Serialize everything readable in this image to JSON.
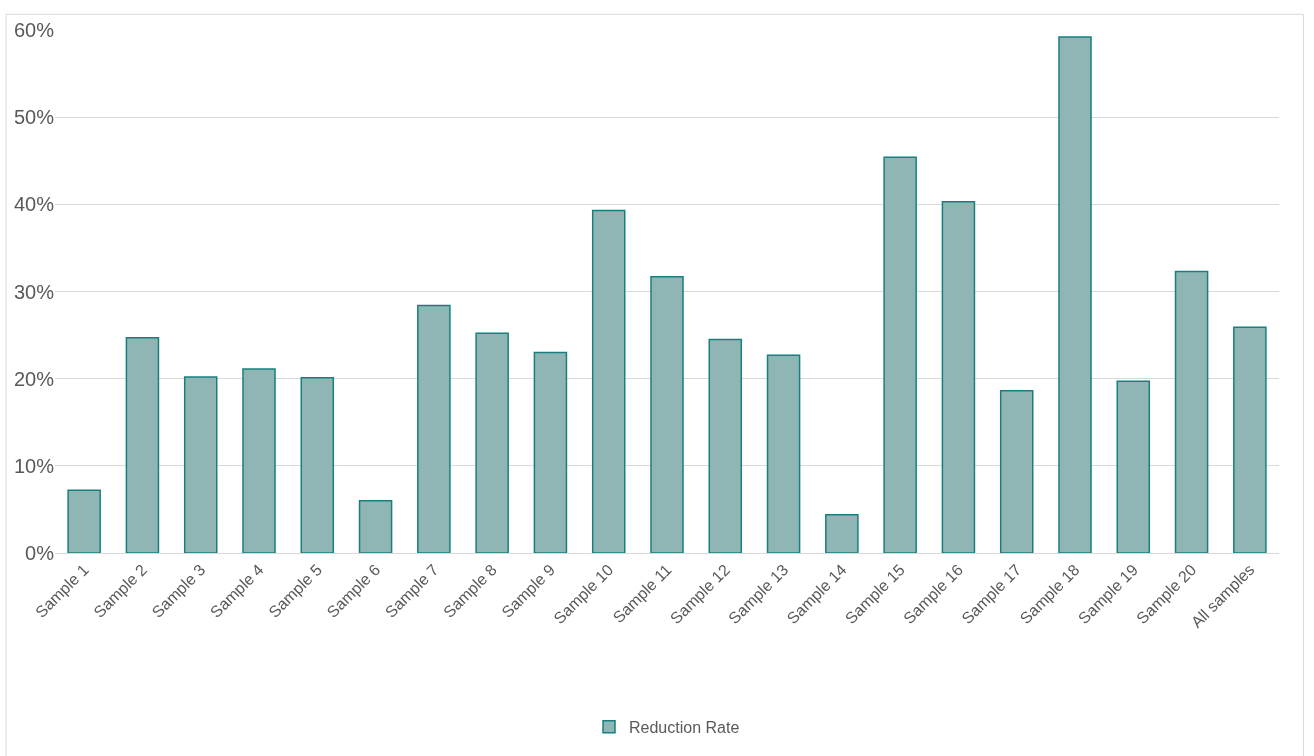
{
  "chart_data": {
    "type": "bar",
    "categories": [
      "Sample 1",
      "Sample 2",
      "Sample 3",
      "Sample 4",
      "Sample 5",
      "Sample 6",
      "Sample 7",
      "Sample 8",
      "Sample 9",
      "Sample 10",
      "Sample 11",
      "Sample 12",
      "Sample 13",
      "Sample 14",
      "Sample 15",
      "Sample 16",
      "Sample 17",
      "Sample 18",
      "Sample 19",
      "Sample 20",
      "All samples"
    ],
    "series": [
      {
        "name": "Reduction Rate",
        "color": "#8fb6b4",
        "values": [
          7.2,
          24.7,
          20.2,
          21.1,
          20.1,
          6.0,
          28.4,
          25.2,
          23.0,
          39.3,
          31.7,
          24.5,
          22.7,
          4.4,
          45.4,
          40.3,
          18.6,
          59.2,
          19.7,
          32.3,
          25.9
        ]
      }
    ],
    "ylim": [
      0,
      60
    ],
    "yticks": [
      {
        "value": 0,
        "label": "0%"
      },
      {
        "value": 10,
        "label": "10%"
      },
      {
        "value": 20,
        "label": "20%"
      },
      {
        "value": 30,
        "label": "30%"
      },
      {
        "value": 40,
        "label": "40%"
      },
      {
        "value": 50,
        "label": "50%"
      },
      {
        "value": 60,
        "label": "60%"
      }
    ],
    "grid": "y",
    "legend": "bottom"
  }
}
